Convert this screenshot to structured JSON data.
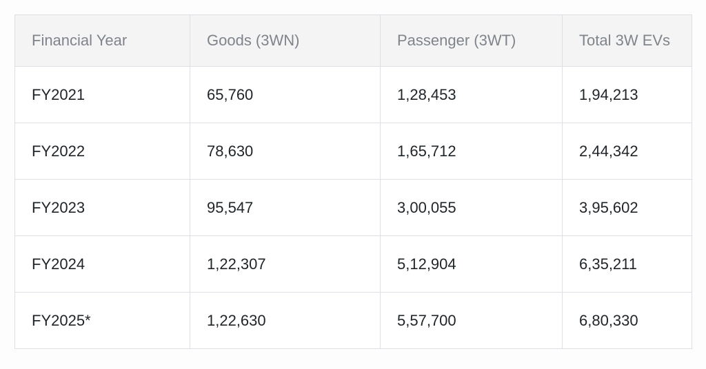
{
  "table": {
    "headers": [
      "Financial Year",
      "Goods (3WN)",
      "Passenger (3WT)",
      "Total 3W EVs"
    ],
    "rows": [
      [
        "FY2021",
        "65,760",
        "1,28,453",
        "1,94,213"
      ],
      [
        "FY2022",
        "78,630",
        "1,65,712",
        "2,44,342"
      ],
      [
        "FY2023",
        "95,547",
        "3,00,055",
        "3,95,602"
      ],
      [
        "FY2024",
        "1,22,307",
        "5,12,904",
        "6,35,211"
      ],
      [
        "FY2025*",
        "1,22,630",
        "5,57,700",
        "6,80,330"
      ]
    ]
  }
}
